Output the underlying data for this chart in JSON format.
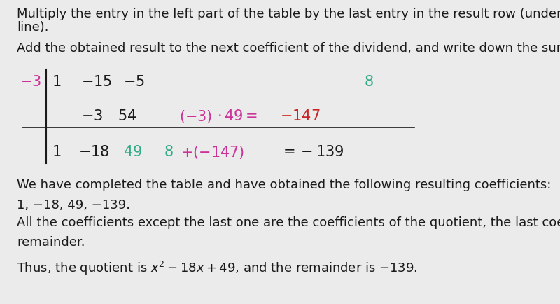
{
  "bg_color": "#ebebeb",
  "text_color": "#1a1a1a",
  "pink_color": "#cc3399",
  "green_color": "#33aa88",
  "red_color": "#cc2222",
  "font_size": 13.0,
  "table_font_size": 15.0,
  "line1": "Multiply the entry in the left part of the table by the last entry in the result row (under the horizontal",
  "line2": "line).",
  "line3": "Add the obtained result to the next coefficient of the dividend, and write down the sum.",
  "line_conclusion1": "We have completed the table and have obtained the following resulting coefficients:",
  "line_conclusion2": "1, −18, 49, −139.",
  "line_all": "All the coefficients except the last one are the coefficients of the quotient, the last coefficient is the",
  "line_remainder": "remainder."
}
